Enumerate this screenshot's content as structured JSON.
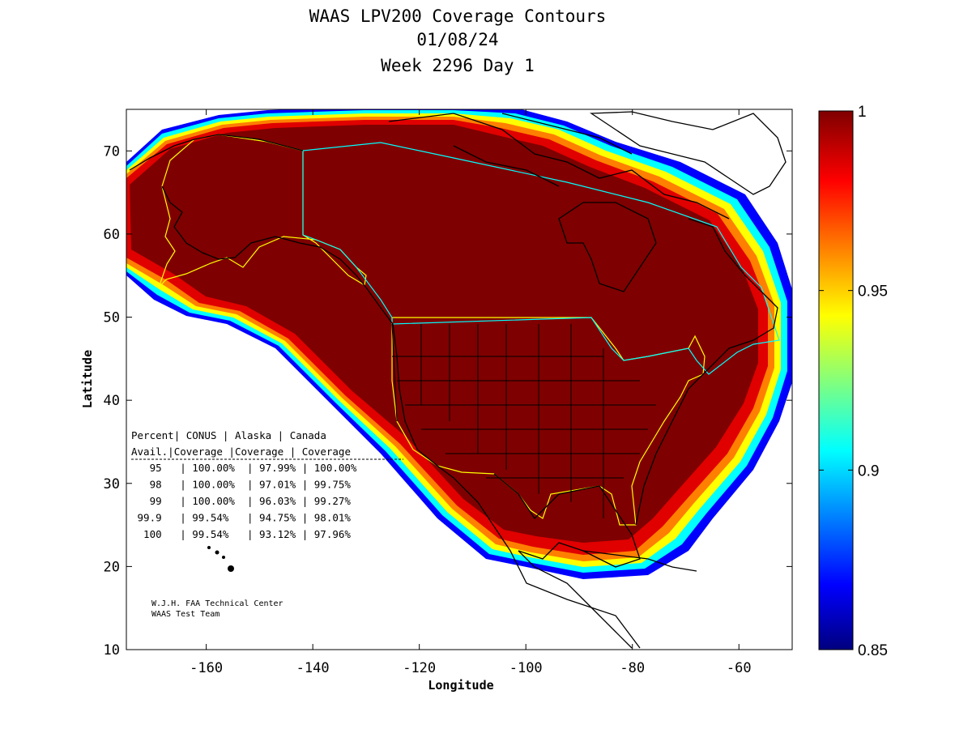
{
  "title": {
    "line1": "WAAS LPV200 Coverage Contours",
    "line2": "01/08/24",
    "line3": "Week 2296 Day 1"
  },
  "chart_data": {
    "type": "heatmap",
    "title": "WAAS LPV200 Coverage Contours",
    "xlabel": "Longitude",
    "ylabel": "Latitude",
    "xlim": [
      -175,
      -50
    ],
    "ylim": [
      10,
      75
    ],
    "x_ticks": [
      -160,
      -140,
      -120,
      -100,
      -80,
      -60
    ],
    "y_ticks": [
      10,
      20,
      30,
      40,
      50,
      60,
      70
    ],
    "colorbar": {
      "min": 0.85,
      "max": 1,
      "ticks": [
        "1",
        "0.95",
        "0.9",
        "0.85"
      ]
    },
    "availability_table": {
      "header1": [
        "Percent",
        "CONUS",
        "Alaska",
        "Canada"
      ],
      "header2": [
        "Avail.",
        "Coverage",
        "Coverage",
        "Coverage"
      ],
      "rows": [
        {
          "avail": "95",
          "conus": "100.00%",
          "alaska": "97.99%",
          "canada": "100.00%"
        },
        {
          "avail": "98",
          "conus": "100.00%",
          "alaska": "97.01%",
          "canada": "99.75%"
        },
        {
          "avail": "99",
          "conus": "100.00%",
          "alaska": "96.03%",
          "canada": "99.27%"
        },
        {
          "avail": "99.9",
          "conus": "99.54%",
          "alaska": "94.75%",
          "canada": "98.01%"
        },
        {
          "avail": "100",
          "conus": "99.54%",
          "alaska": "93.12%",
          "canada": "97.96%"
        }
      ]
    }
  },
  "credit": {
    "line1": "W.J.H. FAA Technical Center",
    "line2": "WAAS Test Team"
  },
  "colors": {
    "dark_red": "#7f0000",
    "red": "#d00000",
    "orange": "#ff7f00",
    "yellow": "#ffff00",
    "cyan": "#00ffff",
    "blue": "#0000ff",
    "navy": "#00007f",
    "region_outline_yellow": "#ffff00",
    "region_outline_cyan": "#00ffff"
  }
}
